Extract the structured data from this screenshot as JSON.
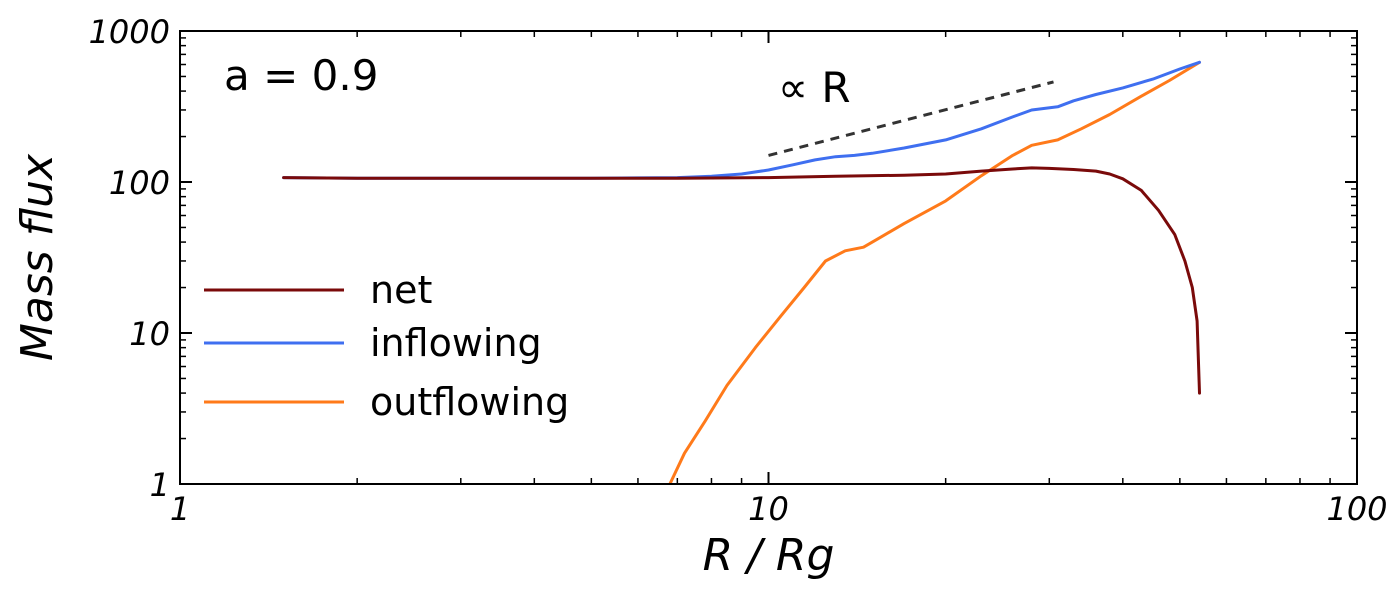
{
  "chart_data": {
    "type": "line",
    "xlabel": "R / Rg",
    "ylabel": "Mass flux",
    "xscale": "log",
    "yscale": "log",
    "xlim": [
      1,
      100
    ],
    "ylim": [
      1,
      1000
    ],
    "x_ticks": [
      {
        "value": 1,
        "label": "1"
      },
      {
        "value": 10,
        "label": "10"
      },
      {
        "value": 100,
        "label": "100"
      }
    ],
    "y_ticks": [
      {
        "value": 1,
        "label": "1"
      },
      {
        "value": 10,
        "label": "10"
      },
      {
        "value": 100,
        "label": "100"
      },
      {
        "value": 1000,
        "label": "1000"
      }
    ],
    "grid": false,
    "legend_position": "left",
    "annotations": [
      {
        "text": "a = 0.9",
        "x": 1.1,
        "y": 450
      },
      {
        "text": "∝ R",
        "x": 10,
        "y": 300
      }
    ],
    "reference_line": {
      "label": "∝ R",
      "style": "dashed",
      "color": "#333333",
      "x": [
        10,
        30.5
      ],
      "y": [
        150,
        460
      ]
    },
    "series": [
      {
        "name": "net",
        "color": "#7a0a0a",
        "x": [
          1.5,
          2,
          3,
          5,
          7,
          10,
          13,
          17,
          20,
          23,
          26,
          28,
          30,
          33,
          36,
          38,
          40,
          43,
          46,
          49,
          51,
          52.5,
          53.5,
          54
        ],
        "y": [
          107,
          106,
          106,
          106,
          106,
          107,
          109,
          111,
          113,
          118,
          122,
          124,
          123,
          121,
          118,
          113,
          105,
          88,
          65,
          45,
          30,
          20,
          12,
          4
        ]
      },
      {
        "name": "inflowing",
        "color": "#3f6ff0",
        "x": [
          1.5,
          2,
          3,
          5,
          7,
          8,
          9,
          10,
          11,
          12,
          13,
          14,
          15,
          17,
          20,
          23,
          26,
          28,
          31,
          33,
          36,
          40,
          45,
          50,
          54
        ],
        "y": [
          107,
          106,
          106,
          106,
          107,
          109,
          113,
          120,
          130,
          140,
          147,
          150,
          155,
          168,
          190,
          225,
          270,
          300,
          315,
          345,
          380,
          420,
          480,
          560,
          620
        ]
      },
      {
        "name": "outflowing",
        "color": "#ff7a1a",
        "x": [
          6.8,
          7.2,
          7.8,
          8.5,
          9.5,
          10.5,
          11.5,
          12.5,
          13.5,
          14.5,
          15.5,
          17,
          20,
          23,
          26,
          28,
          31,
          34,
          38,
          43,
          48,
          54
        ],
        "y": [
          1,
          1.6,
          2.6,
          4.5,
          8,
          13,
          20,
          30,
          35,
          37,
          43,
          53,
          75,
          110,
          150,
          175,
          190,
          225,
          280,
          370,
          470,
          620
        ]
      }
    ]
  }
}
